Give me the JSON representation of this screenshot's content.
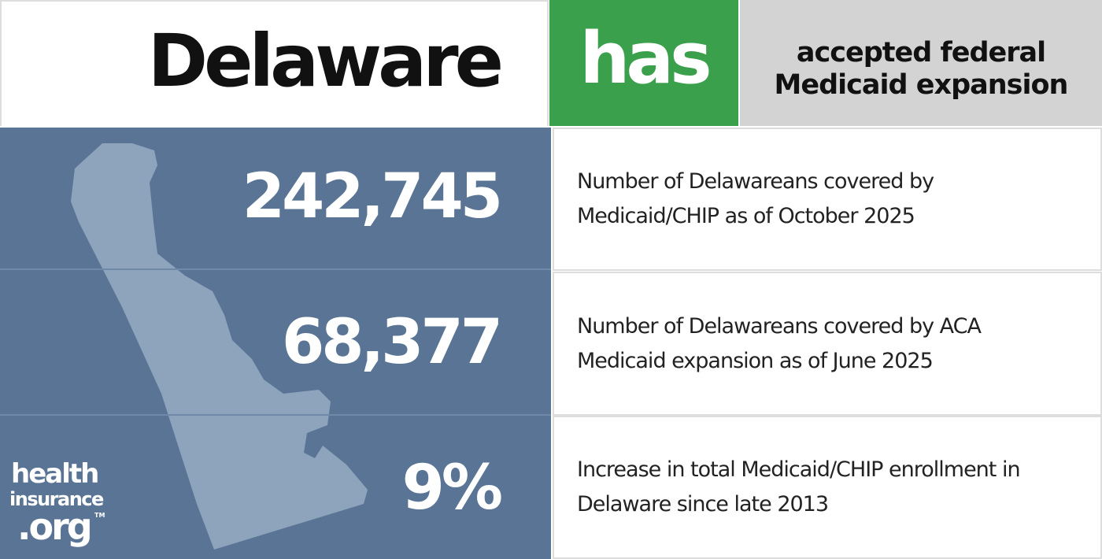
{
  "header": {
    "state": "Delaware",
    "status": "has",
    "status_text_lines": [
      "accepted federal",
      "Medicaid expansion"
    ]
  },
  "stats": [
    {
      "value": "242,745",
      "description_lines": [
        "Number of Delawareans covered by",
        "Medicaid/CHIP as of October 2025"
      ]
    },
    {
      "value": "68,377",
      "description_lines": [
        "Number of Delawareans covered by ACA",
        "Medicaid expansion as of June 2025"
      ]
    },
    {
      "value": "9%",
      "description_lines": [
        "Increase in total Medicaid/CHIP enrollment in",
        "Delaware since late 2013"
      ]
    }
  ],
  "logo": {
    "line1": "health",
    "line2": "insurance",
    "line3": ".org",
    "tm": "TM"
  }
}
